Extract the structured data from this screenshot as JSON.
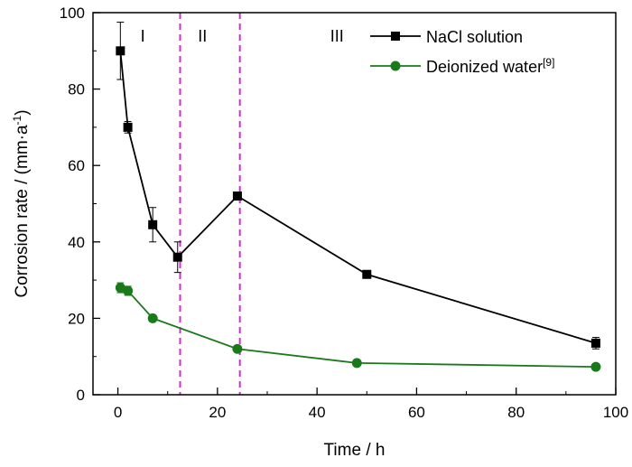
{
  "chart_data": {
    "type": "line",
    "xlabel": "Time / h",
    "ylabel_main": "Corrosion rate / (mm·a",
    "ylabel_sup": "-1",
    "ylabel_tail": ")",
    "xlim": [
      -5,
      100
    ],
    "ylim": [
      0,
      100
    ],
    "xticks": [
      0,
      20,
      40,
      60,
      80,
      100
    ],
    "yticks": [
      0,
      20,
      40,
      60,
      80,
      100
    ],
    "grid": false,
    "legend_position": "top-right",
    "phase_lines": [
      12.5,
      24.5
    ],
    "phase_line_color": "#cc33cc",
    "regions": [
      {
        "label": "I",
        "x": 5
      },
      {
        "label": "II",
        "x": 17
      },
      {
        "label": "III",
        "x": 44
      }
    ],
    "series": [
      {
        "name": "NaCl solution",
        "name_sup": "",
        "color": "#000000",
        "marker": "square",
        "x": [
          0.5,
          2,
          7,
          12,
          24,
          50,
          96
        ],
        "y": [
          90,
          70,
          44.5,
          36,
          52,
          31.5,
          13.5
        ],
        "err": [
          7.5,
          1.5,
          4.5,
          4,
          0.8,
          0.8,
          1.5
        ]
      },
      {
        "name": "Deionized water",
        "name_sup": "[9]",
        "color": "#1a7a1a",
        "marker": "circle",
        "x": [
          0.5,
          2,
          7,
          24,
          48,
          96
        ],
        "y": [
          28,
          27.2,
          20,
          12,
          8.3,
          7.3
        ],
        "err": [
          1.3,
          1.2,
          0.8,
          0.6,
          0.4,
          0.4
        ]
      }
    ]
  }
}
